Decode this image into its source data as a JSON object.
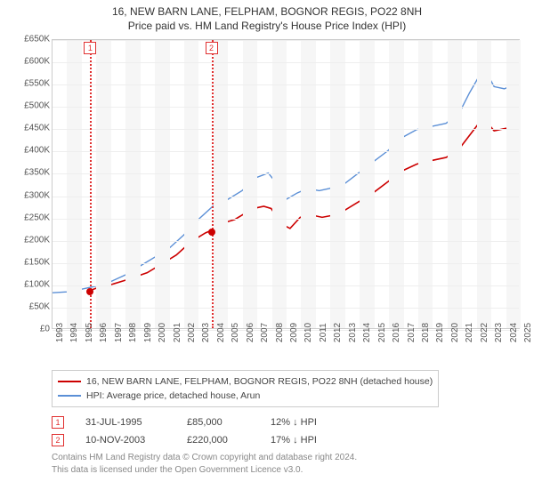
{
  "title_main": "16, NEW BARN LANE, FELPHAM, BOGNOR REGIS, PO22 8NH",
  "title_sub": "Price paid vs. HM Land Registry's House Price Index (HPI)",
  "chart": {
    "type": "line",
    "background_color": "#ffffff",
    "grid_color": "#eeeeee",
    "axis_color": "#cccccc",
    "tick_font_size": 10,
    "x": {
      "min": 1993,
      "max": 2025,
      "ticks": [
        1993,
        1994,
        1995,
        1996,
        1997,
        1998,
        1999,
        2000,
        2001,
        2002,
        2003,
        2004,
        2005,
        2006,
        2007,
        2008,
        2009,
        2010,
        2011,
        2012,
        2013,
        2014,
        2015,
        2016,
        2017,
        2018,
        2019,
        2020,
        2021,
        2022,
        2023,
        2024,
        2025
      ]
    },
    "y": {
      "min": 0,
      "max": 650000,
      "tick_step": 50000,
      "prefix": "£",
      "ticks_fmt": [
        "£0",
        "£50K",
        "£100K",
        "£150K",
        "£200K",
        "£250K",
        "£300K",
        "£350K",
        "£400K",
        "£450K",
        "£500K",
        "£550K",
        "£600K",
        "£650K"
      ]
    },
    "alt_bands": {
      "color": "#f6f6f6",
      "years": [
        1994,
        1996,
        1998,
        2000,
        2002,
        2004,
        2006,
        2008,
        2010,
        2012,
        2014,
        2016,
        2018,
        2020,
        2022,
        2024
      ]
    },
    "series": [
      {
        "id": "price_paid",
        "color": "#cc0000",
        "line_width": 1.6,
        "points": [
          [
            1995.58,
            85000
          ],
          [
            1996,
            90000
          ],
          [
            1997,
            98000
          ],
          [
            1998,
            108000
          ],
          [
            1999.5,
            125000
          ],
          [
            2000.5,
            145000
          ],
          [
            2001.5,
            165000
          ],
          [
            2002.5,
            195000
          ],
          [
            2003.5,
            215000
          ],
          [
            2003.86,
            220000
          ],
          [
            2004.5,
            235000
          ],
          [
            2005.5,
            245000
          ],
          [
            2006,
            255000
          ],
          [
            2006.8,
            270000
          ],
          [
            2007.5,
            275000
          ],
          [
            2008,
            270000
          ],
          [
            2008.7,
            235000
          ],
          [
            2009.3,
            225000
          ],
          [
            2010,
            250000
          ],
          [
            2010.8,
            255000
          ],
          [
            2011.5,
            250000
          ],
          [
            2012.3,
            255000
          ],
          [
            2013,
            265000
          ],
          [
            2014,
            285000
          ],
          [
            2015,
            305000
          ],
          [
            2016,
            330000
          ],
          [
            2017,
            355000
          ],
          [
            2018,
            370000
          ],
          [
            2019,
            378000
          ],
          [
            2020,
            385000
          ],
          [
            2020.8,
            400000
          ],
          [
            2021.5,
            430000
          ],
          [
            2022.2,
            460000
          ],
          [
            2022.8,
            465000
          ],
          [
            2023.3,
            445000
          ],
          [
            2024,
            450000
          ],
          [
            2024.8,
            455000
          ],
          [
            2025,
            450000
          ]
        ]
      },
      {
        "id": "hpi",
        "color": "#5b8fd6",
        "line_width": 1.4,
        "points": [
          [
            1993,
            80000
          ],
          [
            1994,
            82000
          ],
          [
            1995,
            88000
          ],
          [
            1996,
            95000
          ],
          [
            1997,
            105000
          ],
          [
            1998,
            120000
          ],
          [
            1999,
            140000
          ],
          [
            2000,
            160000
          ],
          [
            2001,
            180000
          ],
          [
            2002,
            210000
          ],
          [
            2003,
            245000
          ],
          [
            2004,
            275000
          ],
          [
            2005,
            290000
          ],
          [
            2006,
            310000
          ],
          [
            2007,
            340000
          ],
          [
            2007.8,
            350000
          ],
          [
            2008.3,
            330000
          ],
          [
            2009,
            290000
          ],
          [
            2009.8,
            305000
          ],
          [
            2010.5,
            315000
          ],
          [
            2011.3,
            310000
          ],
          [
            2012,
            315000
          ],
          [
            2013,
            325000
          ],
          [
            2014,
            350000
          ],
          [
            2015,
            375000
          ],
          [
            2016,
            400000
          ],
          [
            2017,
            430000
          ],
          [
            2018,
            448000
          ],
          [
            2019,
            455000
          ],
          [
            2020,
            462000
          ],
          [
            2020.9,
            485000
          ],
          [
            2021.6,
            530000
          ],
          [
            2022.3,
            570000
          ],
          [
            2022.8,
            575000
          ],
          [
            2023.3,
            545000
          ],
          [
            2024,
            540000
          ],
          [
            2024.7,
            550000
          ],
          [
            2025,
            545000
          ]
        ]
      }
    ],
    "markers": [
      {
        "n": "1",
        "x": 1995.58,
        "y": 85000
      },
      {
        "n": "2",
        "x": 2003.86,
        "y": 220000
      }
    ]
  },
  "legend": {
    "items": [
      {
        "color": "#cc0000",
        "label": "16, NEW BARN LANE, FELPHAM, BOGNOR REGIS, PO22 8NH (detached house)"
      },
      {
        "color": "#5b8fd6",
        "label": "HPI: Average price, detached house, Arun"
      }
    ]
  },
  "sales": [
    {
      "n": "1",
      "date": "31-JUL-1995",
      "price": "£85,000",
      "diff": "12% ↓ HPI"
    },
    {
      "n": "2",
      "date": "10-NOV-2003",
      "price": "£220,000",
      "diff": "17% ↓ HPI"
    }
  ],
  "footnote_1": "Contains HM Land Registry data © Crown copyright and database right 2024.",
  "footnote_2": "This data is licensed under the Open Government Licence v3.0."
}
